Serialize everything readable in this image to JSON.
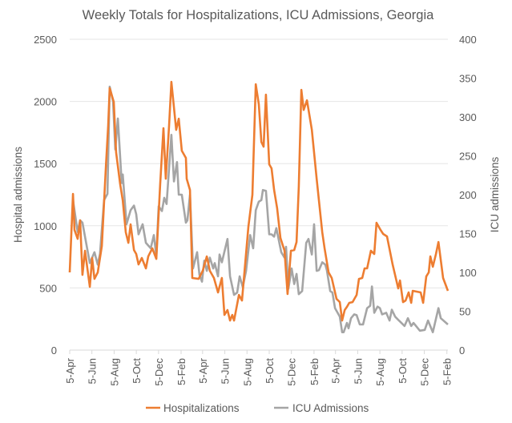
{
  "chart_data": {
    "type": "line",
    "title": "Weekly Totals for Hospitalizations, ICU Admissions, Georgia",
    "xlabel": "",
    "ylabel": "Hospital admissions",
    "y2label": "ICU admissions",
    "x_unit": "weeks since first 5-Apr",
    "xlim": [
      0,
      148.4
    ],
    "ylim": [
      0,
      2500
    ],
    "y2lim": [
      0,
      400
    ],
    "yticks": [
      "0",
      "500",
      "1000",
      "1500",
      "2000",
      "2500"
    ],
    "y2ticks": [
      "0",
      "50",
      "100",
      "150",
      "200",
      "250",
      "300",
      "350",
      "400"
    ],
    "xticks": [
      {
        "label": "5-Apr",
        "week": 0
      },
      {
        "label": "5-Jun",
        "week": 8.71
      },
      {
        "label": "5-Aug",
        "week": 17.43
      },
      {
        "label": "5-Oct",
        "week": 26.14
      },
      {
        "label": "5-Dec",
        "week": 34.86
      },
      {
        "label": "5-Feb",
        "week": 43.71
      },
      {
        "label": "5-Apr",
        "week": 52.14
      },
      {
        "label": "5-Jun",
        "week": 60.86
      },
      {
        "label": "5-Aug",
        "week": 69.57
      },
      {
        "label": "5-Oct",
        "week": 78.29
      },
      {
        "label": "5-Dec",
        "week": 87
      },
      {
        "label": "5-Feb",
        "week": 95.86
      },
      {
        "label": "5-Apr",
        "week": 104.29
      },
      {
        "label": "5-Jun",
        "week": 113
      },
      {
        "label": "5-Aug",
        "week": 121.71
      },
      {
        "label": "5-Oct",
        "week": 130.43
      },
      {
        "label": "5-Dec",
        "week": 139.14
      },
      {
        "label": "5-Feb",
        "week": 148
      }
    ],
    "grid": true,
    "legend_position": "bottom",
    "series": [
      {
        "name": "Hospitalizations",
        "axis": "left",
        "color": "#ED7D31",
        "points": [
          [
            0,
            625
          ],
          [
            1.3,
            1256
          ],
          [
            1.9,
            966
          ],
          [
            3.1,
            895
          ],
          [
            4.1,
            1043
          ],
          [
            5,
            605
          ],
          [
            6,
            799
          ],
          [
            7.9,
            509
          ],
          [
            8.8,
            741
          ],
          [
            9.7,
            573
          ],
          [
            11,
            625
          ],
          [
            12.6,
            837
          ],
          [
            14.2,
            1481
          ],
          [
            15.1,
            1803
          ],
          [
            15.7,
            2106
          ],
          [
            17.3,
            1996
          ],
          [
            18.2,
            1591
          ],
          [
            19.8,
            1333
          ],
          [
            20.8,
            1204
          ],
          [
            22,
            947
          ],
          [
            23,
            863
          ],
          [
            23.9,
            1011
          ],
          [
            25.2,
            805
          ],
          [
            26.1,
            773
          ],
          [
            27,
            689
          ],
          [
            28.3,
            741
          ],
          [
            29.9,
            657
          ],
          [
            30.8,
            753
          ],
          [
            32.4,
            818
          ],
          [
            34,
            734
          ],
          [
            35.5,
            1333
          ],
          [
            36.8,
            1784
          ],
          [
            37.7,
            1378
          ],
          [
            39,
            1803
          ],
          [
            39.9,
            2157
          ],
          [
            41.8,
            1771
          ],
          [
            42.8,
            1861
          ],
          [
            44,
            1604
          ],
          [
            45.6,
            1546
          ],
          [
            45.9,
            1378
          ],
          [
            47.2,
            1288
          ],
          [
            48.1,
            580
          ],
          [
            50.6,
            573
          ],
          [
            52.2,
            638
          ],
          [
            53.8,
            753
          ],
          [
            55,
            638
          ],
          [
            56.6,
            580
          ],
          [
            58.2,
            464
          ],
          [
            59.7,
            580
          ],
          [
            60.7,
            283
          ],
          [
            61.9,
            322
          ],
          [
            62.9,
            238
          ],
          [
            63.8,
            283
          ],
          [
            64.5,
            238
          ],
          [
            66.4,
            444
          ],
          [
            67.6,
            399
          ],
          [
            70.1,
            992
          ],
          [
            71.7,
            1249
          ],
          [
            73,
            2138
          ],
          [
            74.2,
            1977
          ],
          [
            75.2,
            1674
          ],
          [
            76.1,
            1636
          ],
          [
            77,
            2054
          ],
          [
            78.3,
            1494
          ],
          [
            79.2,
            1462
          ],
          [
            80.2,
            1288
          ],
          [
            81.4,
            1140
          ],
          [
            82.7,
            902
          ],
          [
            84.3,
            799
          ],
          [
            85.5,
            451
          ],
          [
            86.8,
            799
          ],
          [
            88.1,
            805
          ],
          [
            89,
            869
          ],
          [
            89.9,
            1314
          ],
          [
            90.9,
            2093
          ],
          [
            91.8,
            1932
          ],
          [
            93.1,
            2009
          ],
          [
            95,
            1771
          ],
          [
            96.9,
            1378
          ],
          [
            99.1,
            947
          ],
          [
            100,
            818
          ],
          [
            101.6,
            625
          ],
          [
            102.8,
            580
          ],
          [
            104.7,
            412
          ],
          [
            106,
            386
          ],
          [
            106.9,
            238
          ],
          [
            107.9,
            322
          ],
          [
            108.8,
            348
          ],
          [
            109.7,
            380
          ],
          [
            111,
            386
          ],
          [
            112.6,
            444
          ],
          [
            113.5,
            573
          ],
          [
            114.8,
            580
          ],
          [
            115.7,
            657
          ],
          [
            116.7,
            657
          ],
          [
            118.2,
            799
          ],
          [
            119.5,
            773
          ],
          [
            120.4,
            1024
          ],
          [
            122,
            966
          ],
          [
            123,
            934
          ],
          [
            124.5,
            914
          ],
          [
            126.7,
            689
          ],
          [
            128.9,
            496
          ],
          [
            129.6,
            560
          ],
          [
            130.8,
            386
          ],
          [
            131.8,
            399
          ],
          [
            133,
            464
          ],
          [
            134,
            380
          ],
          [
            134.6,
            477
          ],
          [
            137.7,
            464
          ],
          [
            138.7,
            380
          ],
          [
            139.9,
            592
          ],
          [
            140.9,
            625
          ],
          [
            141.5,
            753
          ],
          [
            142.5,
            670
          ],
          [
            143.7,
            773
          ],
          [
            144.7,
            869
          ],
          [
            146.5,
            580
          ],
          [
            148.4,
            477
          ]
        ]
      },
      {
        "name": "ICU Admissions",
        "axis": "right",
        "color": "#A5A5A5",
        "points": [
          [
            1.3,
            193
          ],
          [
            3.1,
            152
          ],
          [
            4.1,
            167
          ],
          [
            5,
            164
          ],
          [
            7.9,
            112
          ],
          [
            9.7,
            126
          ],
          [
            11,
            110
          ],
          [
            11.9,
            124
          ],
          [
            13.5,
            193
          ],
          [
            14.8,
            201
          ],
          [
            15.7,
            339
          ],
          [
            17,
            320
          ],
          [
            17.9,
            258
          ],
          [
            18.9,
            298
          ],
          [
            20.4,
            215
          ],
          [
            20.8,
            226
          ],
          [
            22.3,
            162
          ],
          [
            23.9,
            180
          ],
          [
            25.2,
            186
          ],
          [
            26.1,
            175
          ],
          [
            27,
            149
          ],
          [
            28.6,
            162
          ],
          [
            29.9,
            138
          ],
          [
            31.8,
            131
          ],
          [
            33,
            148
          ],
          [
            34,
            121
          ],
          [
            34.9,
            185
          ],
          [
            36.2,
            179
          ],
          [
            37.1,
            196
          ],
          [
            38,
            188
          ],
          [
            39.9,
            277
          ],
          [
            40.9,
            217
          ],
          [
            42.1,
            242
          ],
          [
            42.8,
            200
          ],
          [
            44,
            200
          ],
          [
            45.6,
            164
          ],
          [
            46.2,
            167
          ],
          [
            47.2,
            200
          ],
          [
            48.4,
            105
          ],
          [
            50,
            126
          ],
          [
            50.9,
            97
          ],
          [
            51.9,
            88
          ],
          [
            52.8,
            115
          ],
          [
            53.8,
            102
          ],
          [
            55,
            119
          ],
          [
            56.3,
            105
          ],
          [
            56.9,
            112
          ],
          [
            58.2,
            95
          ],
          [
            58.8,
            123
          ],
          [
            59.7,
            113
          ],
          [
            61.9,
            143
          ],
          [
            62.9,
            95
          ],
          [
            64.5,
            71
          ],
          [
            65.7,
            74
          ],
          [
            66.7,
            95
          ],
          [
            67.9,
            81
          ],
          [
            69.2,
            102
          ],
          [
            70.8,
            148
          ],
          [
            72,
            131
          ],
          [
            73,
            180
          ],
          [
            74.2,
            191
          ],
          [
            75.2,
            193
          ],
          [
            75.8,
            206
          ],
          [
            77,
            205
          ],
          [
            78.3,
            149
          ],
          [
            79.2,
            149
          ],
          [
            80.2,
            146
          ],
          [
            81.1,
            157
          ],
          [
            83,
            126
          ],
          [
            84.3,
            119
          ],
          [
            84.9,
            133
          ],
          [
            85.8,
            79
          ],
          [
            87.1,
            105
          ],
          [
            88.1,
            85
          ],
          [
            89,
            98
          ],
          [
            89.9,
            72
          ],
          [
            91.2,
            76
          ],
          [
            92.8,
            138
          ],
          [
            93.7,
            143
          ],
          [
            95,
            123
          ],
          [
            95.9,
            162
          ],
          [
            96.9,
            102
          ],
          [
            97.8,
            103
          ],
          [
            99.1,
            113
          ],
          [
            100.3,
            110
          ],
          [
            100.9,
            103
          ],
          [
            102.2,
            76
          ],
          [
            103.1,
            74
          ],
          [
            104.1,
            54
          ],
          [
            106,
            43
          ],
          [
            106.9,
            23
          ],
          [
            107.5,
            23
          ],
          [
            108.8,
            35
          ],
          [
            109.4,
            28
          ],
          [
            110.4,
            41
          ],
          [
            111.6,
            46
          ],
          [
            112.6,
            45
          ],
          [
            113.8,
            33
          ],
          [
            115.1,
            33
          ],
          [
            116.7,
            54
          ],
          [
            117.9,
            57
          ],
          [
            118.6,
            82
          ],
          [
            119.5,
            48
          ],
          [
            120.8,
            56
          ],
          [
            121.7,
            54
          ],
          [
            122.6,
            46
          ],
          [
            124.2,
            48
          ],
          [
            125.5,
            38
          ],
          [
            126.4,
            52
          ],
          [
            127.7,
            43
          ],
          [
            129.2,
            38
          ],
          [
            131.4,
            31
          ],
          [
            132.7,
            41
          ],
          [
            134,
            31
          ],
          [
            134.9,
            35
          ],
          [
            137.4,
            25
          ],
          [
            139.3,
            26
          ],
          [
            140.6,
            38
          ],
          [
            142.5,
            23
          ],
          [
            144.7,
            54
          ],
          [
            145.6,
            41
          ],
          [
            148.4,
            33
          ]
        ]
      }
    ]
  }
}
